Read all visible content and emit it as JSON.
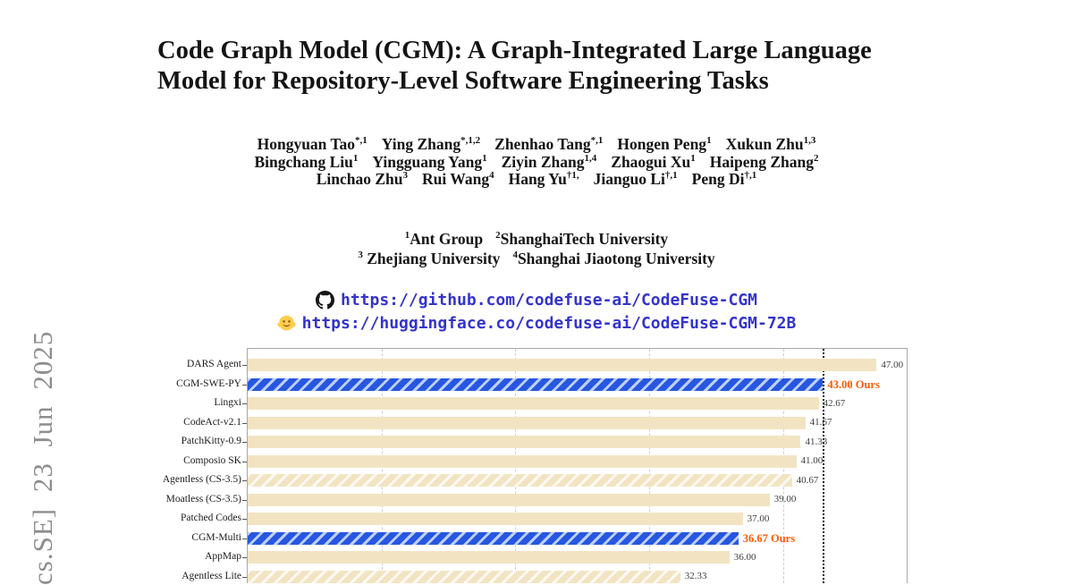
{
  "arxiv_stamp": {
    "text": "cs.SE] 23 Jun 2025",
    "color": "#8D8D8D"
  },
  "title": {
    "line1": "Code Graph Model (CGM): A Graph-Integrated Large Language",
    "line2": "Model for Repository-Level Software Engineering Tasks"
  },
  "authors": {
    "lines": [
      [
        {
          "name": "Hongyuan Tao",
          "sup": "*,1"
        },
        {
          "name": "Ying Zhang",
          "sup": "*,1,2"
        },
        {
          "name": "Zhenhao Tang",
          "sup": "*,1"
        },
        {
          "name": "Hongen Peng",
          "sup": "1"
        },
        {
          "name": "Xukun Zhu",
          "sup": "1,3"
        }
      ],
      [
        {
          "name": "Bingchang Liu",
          "sup": "1"
        },
        {
          "name": "Yingguang Yang",
          "sup": "1"
        },
        {
          "name": "Ziyin Zhang",
          "sup": "1,4"
        },
        {
          "name": "Zhaogui Xu",
          "sup": "1"
        },
        {
          "name": "Haipeng Zhang",
          "sup": "2"
        }
      ],
      [
        {
          "name": "Linchao Zhu",
          "sup": "3"
        },
        {
          "name": "Rui Wang",
          "sup": "4"
        },
        {
          "name": "Hang Yu",
          "sup": "†1,"
        },
        {
          "name": "Jianguo Li",
          "sup": "†,1"
        },
        {
          "name": "Peng Di",
          "sup": "†,1"
        }
      ]
    ]
  },
  "affiliations": {
    "lines": [
      [
        {
          "sup": "1",
          "name": "Ant Group"
        },
        {
          "sup": "2",
          "name": "ShanghaiTech University"
        }
      ],
      [
        {
          "sup": "3",
          "name": " Zhejiang University"
        },
        {
          "sup": "4",
          "name": "Shanghai Jiaotong University"
        }
      ]
    ]
  },
  "links": {
    "github_icon": "github-octocat",
    "github_url": "https://github.com/codefuse-ai/CodeFuse-CGM",
    "huggingface_icon": "hugging-face",
    "huggingface_url": "https://huggingface.co/codefuse-ai/CodeFuse-CGM-72B",
    "color": "#3434CB"
  },
  "chart_data": {
    "type": "bar",
    "orientation": "horizontal",
    "categories": [
      "DARS Agent",
      "CGM-SWE-PY",
      "Lingxi",
      "CodeAct-v2.1",
      "PatchKitty-0.9",
      "Composio SK",
      "Agentless (CS-3.5)",
      "Moatless (CS-3.5)",
      "Patched Codes",
      "CGM-Multi",
      "AppMap",
      "Agentless Lite"
    ],
    "values": [
      47.0,
      43.0,
      42.67,
      41.67,
      41.33,
      41.0,
      40.67,
      39.0,
      37.0,
      36.67,
      36.0,
      32.33
    ],
    "value_labels": [
      "47.00",
      "43.00 Ours",
      "42.67",
      "41.67",
      "41.33",
      "41.00",
      "40.67",
      "39.00",
      "37.00",
      "36.67 Ours",
      "36.00",
      "32.33"
    ],
    "ours": [
      false,
      true,
      false,
      false,
      false,
      false,
      false,
      false,
      false,
      true,
      false,
      false
    ],
    "hatched": [
      false,
      true,
      false,
      false,
      false,
      false,
      true,
      false,
      false,
      true,
      false,
      true
    ],
    "xlim": [
      0,
      49.25
    ],
    "gridlines": [
      10,
      20,
      30,
      40
    ],
    "reference_line": 43.0,
    "grid_style": "vertical-dashed",
    "legend": "none",
    "colors": {
      "bar": "#F2E4C2",
      "highlight_bar": "#2757E0",
      "ours_label": "#FF5A00",
      "value_label": "#3D3D3D",
      "grid": "#CECECE",
      "reference_line": "#1A1A1A"
    }
  }
}
